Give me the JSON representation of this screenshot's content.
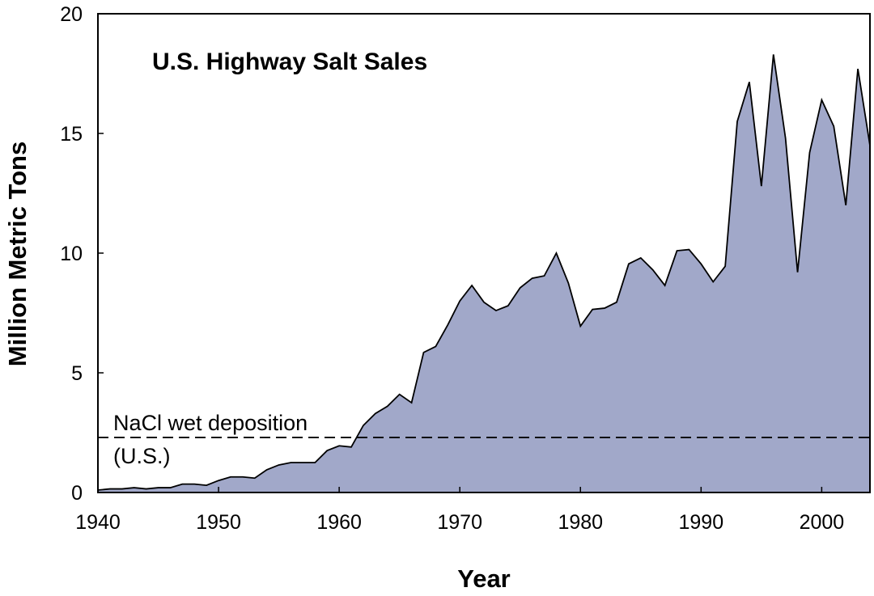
{
  "chart_data": {
    "type": "area",
    "title": "U.S. Highway Salt Sales",
    "xlabel": "Year",
    "ylabel": "Million Metric Tons",
    "xlim": [
      1940,
      2004
    ],
    "ylim": [
      0,
      20
    ],
    "xticks": [
      1940,
      1950,
      1960,
      1970,
      1980,
      1990,
      2000
    ],
    "yticks": [
      0,
      5,
      10,
      15,
      20
    ],
    "colors": {
      "fill": "#a1a8c9",
      "line": "#000000"
    },
    "series": [
      {
        "name": "U.S. Highway Salt Sales",
        "x": [
          1940,
          1941,
          1942,
          1943,
          1944,
          1945,
          1946,
          1947,
          1948,
          1949,
          1950,
          1951,
          1952,
          1953,
          1954,
          1955,
          1956,
          1957,
          1958,
          1959,
          1960,
          1961,
          1962,
          1963,
          1964,
          1965,
          1966,
          1967,
          1968,
          1969,
          1970,
          1971,
          1972,
          1973,
          1974,
          1975,
          1976,
          1977,
          1978,
          1979,
          1980,
          1981,
          1982,
          1983,
          1984,
          1985,
          1986,
          1987,
          1988,
          1989,
          1990,
          1991,
          1992,
          1993,
          1994,
          1995,
          1996,
          1997,
          1998,
          1999,
          2000,
          2001,
          2002,
          2003,
          2004
        ],
        "y": [
          0.1,
          0.15,
          0.15,
          0.2,
          0.15,
          0.2,
          0.2,
          0.35,
          0.35,
          0.3,
          0.5,
          0.65,
          0.65,
          0.6,
          0.95,
          1.15,
          1.25,
          1.25,
          1.25,
          1.75,
          1.95,
          1.9,
          2.8,
          3.3,
          3.6,
          4.1,
          3.75,
          5.85,
          6.1,
          7.0,
          8.0,
          8.65,
          7.95,
          7.6,
          7.8,
          8.55,
          8.95,
          9.05,
          10.0,
          8.75,
          6.95,
          7.65,
          7.7,
          7.95,
          9.55,
          9.8,
          9.3,
          8.65,
          10.1,
          10.15,
          9.55,
          8.8,
          9.45,
          15.5,
          17.15,
          12.8,
          18.3,
          14.8,
          9.2,
          14.2,
          16.4,
          15.3,
          12.0,
          17.7,
          14.5
        ]
      }
    ],
    "reference_line": {
      "value": 2.3,
      "label_line1": "NaCl wet deposition",
      "label_line2": "(U.S.)",
      "style": "dashed"
    }
  }
}
